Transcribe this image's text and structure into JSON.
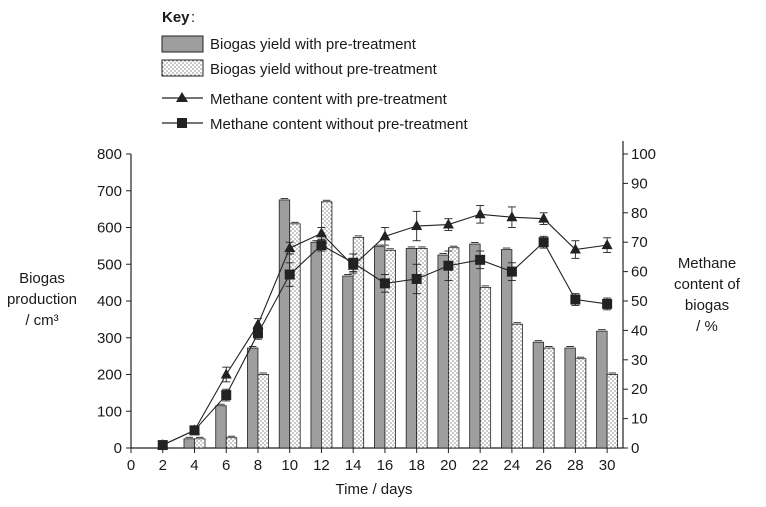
{
  "chart_data": {
    "type": "bar",
    "key_title": "Key",
    "xlabel": "Time / days",
    "ylabel_left": [
      "Biogas",
      "production",
      "/ cm³"
    ],
    "ylabel_right": [
      "Methane",
      "content of",
      "biogas",
      "/ %"
    ],
    "x_ticks": [
      0,
      2,
      4,
      6,
      8,
      10,
      12,
      14,
      16,
      18,
      20,
      22,
      24,
      26,
      28,
      30
    ],
    "y_left_ticks": [
      0,
      100,
      200,
      300,
      400,
      500,
      600,
      700,
      800
    ],
    "y_right_ticks": [
      0,
      10,
      20,
      30,
      40,
      50,
      60,
      70,
      80,
      90,
      100
    ],
    "xlim": [
      0,
      31
    ],
    "ylim_left": [
      0,
      800
    ],
    "ylim_right": [
      0,
      100
    ],
    "legend_placement": "top",
    "x": [
      2,
      4,
      6,
      8,
      10,
      12,
      14,
      16,
      18,
      20,
      22,
      24,
      26,
      28,
      30
    ],
    "bar_series": [
      {
        "name": "Biogas yield with pre-treatment",
        "style": "solid-grey",
        "color": "#9e9e9e",
        "values": [
          0,
          25,
          115,
          272,
          675,
          560,
          468,
          548,
          543,
          525,
          555,
          540,
          288,
          272,
          318
        ]
      },
      {
        "name": "Biogas yield without pre-treatment",
        "style": "dotted",
        "color": "#ffffff",
        "values": [
          0,
          25,
          28,
          200,
          610,
          670,
          573,
          538,
          543,
          545,
          437,
          337,
          272,
          243,
          200
        ]
      }
    ],
    "line_series": [
      {
        "name": "Methane content with pre-treatment",
        "marker": "triangle",
        "axis": "right",
        "values": [
          1,
          6,
          25,
          42,
          68,
          73,
          62,
          72,
          75.5,
          76,
          79.5,
          78.5,
          78,
          67.5,
          69
        ],
        "error": [
          0,
          0,
          2.5,
          2,
          2,
          2,
          2.5,
          3,
          5,
          2,
          3,
          3.5,
          2,
          3,
          2.5
        ]
      },
      {
        "name": "Methane content without pre-treatment",
        "marker": "square",
        "axis": "right",
        "values": [
          1,
          6,
          18,
          39,
          59,
          69,
          63,
          56,
          57.5,
          62,
          64,
          60,
          70,
          50.5,
          49
        ],
        "error": [
          0,
          0,
          2,
          2,
          4,
          2,
          3,
          3,
          5,
          5,
          3,
          3,
          2,
          2,
          2
        ]
      }
    ]
  }
}
